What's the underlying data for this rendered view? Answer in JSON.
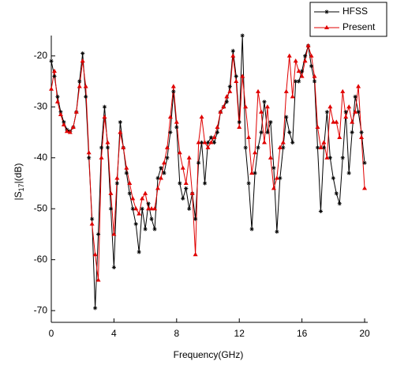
{
  "chart_data": {
    "type": "line",
    "xlabel": "Frequency(GHz)",
    "ylabel": {
      "prefix": "|S",
      "sub": "17",
      "suffix": "|(dB)"
    },
    "xlim": [
      0,
      20.2
    ],
    "ylim": [
      -72.3,
      -16
    ],
    "xticks": [
      0,
      4,
      8,
      12,
      16,
      20
    ],
    "yticks": [
      -20,
      -30,
      -40,
      -50,
      -60,
      -70
    ],
    "legend": "upper right",
    "x": [
      0,
      0.2,
      0.4,
      0.6,
      0.8,
      1,
      1.2,
      1.4,
      1.6,
      1.8,
      2,
      2.2,
      2.4,
      2.6,
      2.8,
      3,
      3.2,
      3.4,
      3.6,
      3.8,
      4,
      4.2,
      4.4,
      4.6,
      4.8,
      5,
      5.2,
      5.4,
      5.6,
      5.8,
      6,
      6.2,
      6.4,
      6.6,
      6.8,
      7,
      7.2,
      7.4,
      7.6,
      7.8,
      8,
      8.2,
      8.4,
      8.6,
      8.8,
      9,
      9.2,
      9.4,
      9.6,
      9.8,
      10,
      10.2,
      10.4,
      10.6,
      10.8,
      11,
      11.2,
      11.4,
      11.6,
      11.8,
      12,
      12.2,
      12.4,
      12.6,
      12.8,
      13,
      13.2,
      13.4,
      13.6,
      13.8,
      14,
      14.2,
      14.4,
      14.6,
      14.8,
      15,
      15.2,
      15.4,
      15.6,
      15.8,
      16,
      16.2,
      16.4,
      16.6,
      16.8,
      17,
      17.2,
      17.4,
      17.6,
      17.8,
      18,
      18.2,
      18.4,
      18.6,
      18.8,
      19,
      19.2,
      19.4,
      19.6,
      19.8,
      20
    ],
    "series": [
      {
        "name": "HFSS",
        "color": "#000000",
        "marker": "star",
        "values": [
          -21,
          -24,
          -28,
          -31,
          -33,
          -34.5,
          -34.8,
          -34,
          -31,
          -25,
          -19.5,
          -28,
          -40,
          -52,
          -69.5,
          -55,
          -38,
          -30,
          -38,
          -50,
          -61.5,
          -45,
          -33,
          -38,
          -43,
          -47,
          -50,
          -53,
          -58.5,
          -50,
          -54,
          -49,
          -52,
          -54,
          -44,
          -42,
          -43,
          -40,
          -35,
          -27,
          -34,
          -45,
          -48,
          -46,
          -50,
          -47,
          -52,
          -41,
          -37,
          -45,
          -37,
          -36,
          -37,
          -35,
          -31,
          -30,
          -29,
          -26,
          -19,
          -24,
          -33,
          -16,
          -38,
          -45,
          -54,
          -43,
          -38,
          -35,
          -29,
          -35,
          -33,
          -42,
          -54.5,
          -44,
          -38,
          -32,
          -35,
          -37,
          -25,
          -25,
          -23,
          -20,
          -18,
          -22,
          -25,
          -38,
          -50.5,
          -38,
          -31,
          -40,
          -44,
          -47,
          -49,
          -40,
          -31,
          -43,
          -35,
          -28,
          -31,
          -35,
          -41
        ]
      },
      {
        "name": "Present",
        "color": "#e00000",
        "marker": "triangle",
        "values": [
          -26.5,
          -23,
          -29,
          -31.5,
          -33.5,
          -34.8,
          -35,
          -34,
          -31,
          -26,
          -21,
          -26,
          -39,
          -53,
          -59,
          -64,
          -40,
          -32,
          -37,
          -47,
          -55,
          -44,
          -35,
          -38,
          -42,
          -45,
          -48,
          -50,
          -51,
          -48,
          -47,
          -50,
          -50,
          -50,
          -46,
          -44,
          -41,
          -38,
          -32,
          -26,
          -33,
          -39,
          -42,
          -45,
          -40,
          -47,
          -59,
          -37,
          -32,
          -37,
          -38,
          -37,
          -36,
          -34,
          -31,
          -30,
          -28,
          -27,
          -20,
          -25,
          -34,
          -24,
          -30,
          -36,
          -43,
          -39,
          -27,
          -31,
          -37,
          -30,
          -40,
          -46,
          -44,
          -38,
          -37,
          -27,
          -20,
          -28,
          -21,
          -23,
          -24,
          -21,
          -18,
          -20,
          -24,
          -34,
          -38,
          -37,
          -40,
          -30,
          -33,
          -33,
          -36,
          -27,
          -32,
          -30,
          -33,
          -31,
          -26,
          -36,
          -46
        ]
      }
    ]
  }
}
